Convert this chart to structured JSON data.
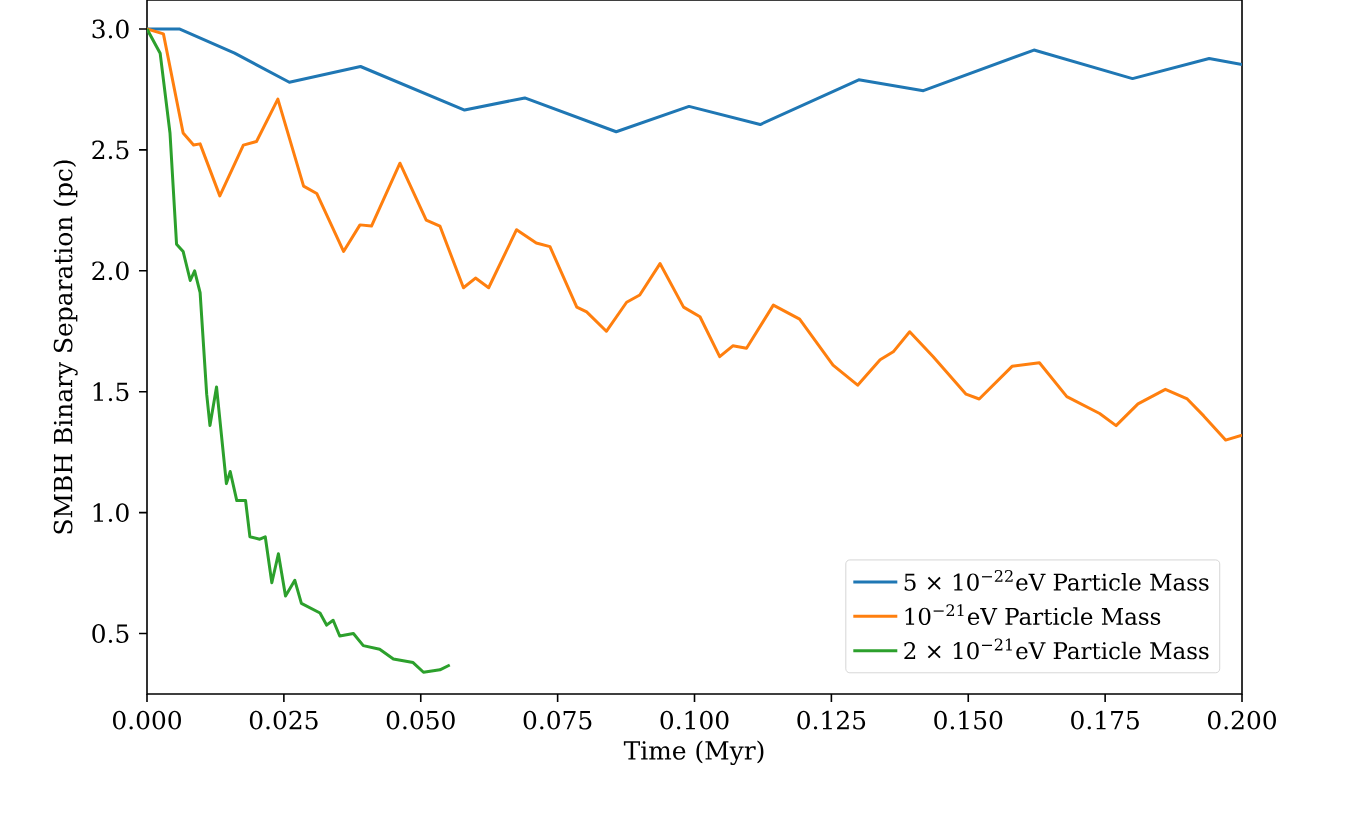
{
  "chart_data": {
    "type": "line",
    "xlabel": "Time (Myr)",
    "ylabel": "SMBH Binary Separation (pc)",
    "xlim": [
      0,
      0.2
    ],
    "ylim": [
      0.25,
      3.12
    ],
    "xticks": [
      {
        "value": 0,
        "label": "0.000"
      },
      {
        "value": 0.025,
        "label": "0.025"
      },
      {
        "value": 0.05,
        "label": "0.050"
      },
      {
        "value": 0.075,
        "label": "0.075"
      },
      {
        "value": 0.1,
        "label": "0.100"
      },
      {
        "value": 0.125,
        "label": "0.125"
      },
      {
        "value": 0.15,
        "label": "0.150"
      },
      {
        "value": 0.175,
        "label": "0.175"
      },
      {
        "value": 0.2,
        "label": "0.200"
      }
    ],
    "yticks": [
      {
        "value": 0.5,
        "label": "0.5"
      },
      {
        "value": 1,
        "label": "1.0"
      },
      {
        "value": 1.5,
        "label": "1.5"
      },
      {
        "value": 2,
        "label": "2.0"
      },
      {
        "value": 2.5,
        "label": "2.5"
      },
      {
        "value": 3,
        "label": "3.0"
      }
    ],
    "legend": "bottom right",
    "series": [
      {
        "name": "5 × 10$^{−22}$eV Particle Mass",
        "color": "#1f77b4",
        "x": [
          0,
          0.006,
          0.016,
          0.026,
          0.039,
          0.058,
          0.069,
          0.0857,
          0.099,
          0.112,
          0.13,
          0.1418,
          0.162,
          0.18,
          0.194,
          0.2
        ],
        "values": [
          3.0,
          3.0,
          2.9,
          2.78,
          2.845,
          2.665,
          2.715,
          2.575,
          2.68,
          2.605,
          2.79,
          2.745,
          2.913,
          2.795,
          2.878,
          2.853
        ]
      },
      {
        "name": "10$^{−21}$eV Particle Mass",
        "color": "#ff7f0e",
        "x": [
          0,
          0.003,
          0.0066,
          0.0085,
          0.0097,
          0.0133,
          0.0176,
          0.02,
          0.0239,
          0.0286,
          0.031,
          0.0359,
          0.0389,
          0.041,
          0.0462,
          0.051,
          0.0535,
          0.0578,
          0.06,
          0.0624,
          0.0675,
          0.0711,
          0.0736,
          0.0785,
          0.0803,
          0.0839,
          0.0876,
          0.09,
          0.0937,
          0.098,
          0.101,
          0.1046,
          0.107,
          0.1095,
          0.1144,
          0.1192,
          0.1253,
          0.1298,
          0.1339,
          0.1363,
          0.1393,
          0.1436,
          0.1496,
          0.152,
          0.158,
          0.163,
          0.168,
          0.174,
          0.177,
          0.181,
          0.186,
          0.19,
          0.193,
          0.197,
          0.2
        ],
        "values": [
          3.0,
          2.98,
          2.57,
          2.52,
          2.525,
          2.31,
          2.52,
          2.535,
          2.71,
          2.35,
          2.32,
          2.08,
          2.19,
          2.185,
          2.445,
          2.21,
          2.185,
          1.93,
          1.97,
          1.93,
          2.17,
          2.115,
          2.1,
          1.85,
          1.83,
          1.75,
          1.87,
          1.9,
          2.03,
          1.85,
          1.81,
          1.645,
          1.69,
          1.68,
          1.858,
          1.8,
          1.61,
          1.527,
          1.632,
          1.665,
          1.748,
          1.645,
          1.49,
          1.47,
          1.605,
          1.62,
          1.48,
          1.41,
          1.36,
          1.45,
          1.51,
          1.47,
          1.4,
          1.3,
          1.32
        ]
      },
      {
        "name": "2 × 10$^{−21}$eV Particle Mass",
        "color": "#2ca02c",
        "x": [
          0,
          0.0024,
          0.0042,
          0.0054,
          0.0066,
          0.0079,
          0.0087,
          0.0097,
          0.0109,
          0.0115,
          0.0127,
          0.0145,
          0.0152,
          0.0164,
          0.018,
          0.0188,
          0.0206,
          0.0216,
          0.0228,
          0.024,
          0.0253,
          0.027,
          0.0282,
          0.0316,
          0.0328,
          0.034,
          0.0352,
          0.0377,
          0.0395,
          0.0425,
          0.045,
          0.0486,
          0.0505,
          0.0535,
          0.0553
        ],
        "values": [
          3.0,
          2.9,
          2.57,
          2.11,
          2.08,
          1.96,
          2.0,
          1.91,
          1.49,
          1.36,
          1.52,
          1.12,
          1.17,
          1.05,
          1.05,
          0.9,
          0.89,
          0.9,
          0.71,
          0.83,
          0.655,
          0.72,
          0.625,
          0.585,
          0.535,
          0.555,
          0.49,
          0.5,
          0.45,
          0.435,
          0.395,
          0.38,
          0.34,
          0.35,
          0.37
        ]
      }
    ]
  }
}
